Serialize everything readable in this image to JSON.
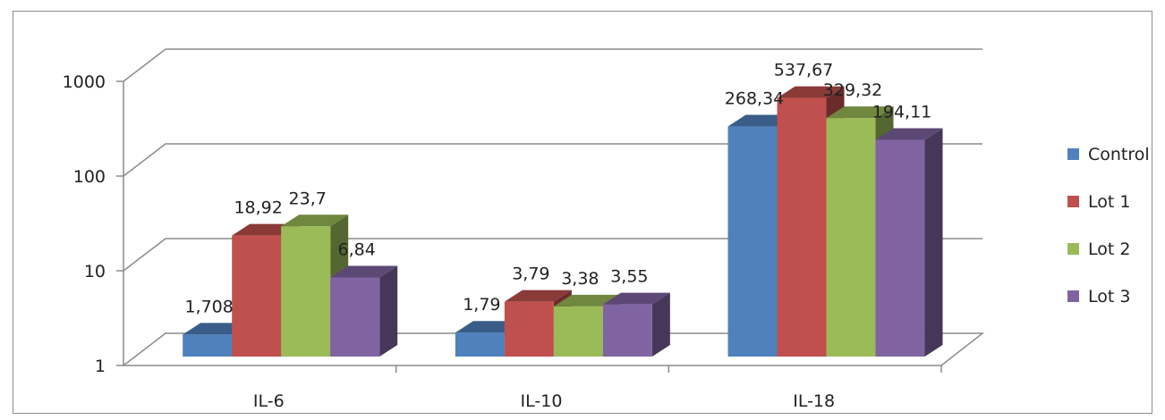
{
  "chart_data": {
    "type": "bar",
    "title": "",
    "xlabel": "",
    "ylabel": "",
    "yscale": "log",
    "ylim": [
      1,
      1000
    ],
    "yticks": [
      1,
      10,
      100,
      1000
    ],
    "ytick_labels": [
      "1",
      "10",
      "100",
      "1000"
    ],
    "categories": [
      "IL-6",
      "IL-10",
      "IL-18"
    ],
    "series": [
      {
        "name": "Control",
        "color": "#4F81BD",
        "values": [
          1.708,
          1.79,
          268.34
        ],
        "labels": [
          "1,708",
          "1,79",
          "268,34"
        ]
      },
      {
        "name": "Lot 1",
        "color": "#C0504D",
        "values": [
          18.92,
          3.79,
          537.67
        ],
        "labels": [
          "18,92",
          "3,79",
          "537,67"
        ]
      },
      {
        "name": "Lot 2",
        "color": "#9BBB59",
        "values": [
          23.7,
          3.38,
          329.32
        ],
        "labels": [
          "23,7",
          "3,38",
          "329,32"
        ]
      },
      {
        "name": "Lot 3",
        "color": "#8064A2",
        "values": [
          6.84,
          3.55,
          194.11
        ],
        "labels": [
          "6,84",
          "3,55",
          "194,11"
        ]
      }
    ],
    "grid": true,
    "legend_position": "right",
    "style": "3d-clustered-column"
  }
}
